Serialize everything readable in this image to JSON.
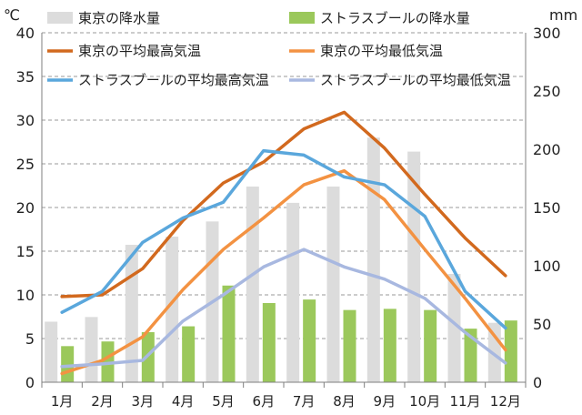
{
  "chart_data": {
    "type": "bar+line",
    "categories": [
      "1月",
      "2月",
      "3月",
      "4月",
      "5月",
      "6月",
      "7月",
      "8月",
      "9月",
      "10月",
      "11月",
      "12月"
    ],
    "left_axis": {
      "unit": "℃",
      "ylim": [
        0,
        40
      ],
      "ticks": [
        0,
        5,
        10,
        15,
        20,
        25,
        30,
        35,
        40
      ]
    },
    "right_axis": {
      "unit": "mm",
      "ylim": [
        0,
        300
      ],
      "ticks": [
        0,
        50,
        100,
        150,
        200,
        250,
        300
      ]
    },
    "grid": true,
    "legend_placement": "top",
    "bar_series": [
      {
        "name": "東京の降水量",
        "color": "#dcdcdc",
        "axis": "right",
        "values": [
          52,
          56,
          118,
          125,
          138,
          168,
          154,
          168,
          210,
          198,
          93,
          51
        ]
      },
      {
        "name": "ストラスブールの降水量",
        "color": "#9bc85b",
        "axis": "right",
        "values": [
          31,
          35,
          43,
          48,
          83,
          68,
          71,
          62,
          63,
          62,
          46,
          53
        ]
      }
    ],
    "line_series": [
      {
        "name": "東京の平均最高気温",
        "color": "#d2691e",
        "axis": "left",
        "values": [
          9.8,
          10.0,
          13.0,
          18.5,
          22.8,
          25.2,
          29.0,
          30.9,
          26.8,
          21.5,
          16.5,
          12.2
        ]
      },
      {
        "name": "東京の平均最低気温",
        "color": "#f39242",
        "axis": "left",
        "values": [
          1.0,
          2.5,
          5.2,
          10.6,
          15.2,
          18.8,
          22.6,
          24.2,
          20.9,
          15.2,
          9.6,
          3.7
        ]
      },
      {
        "name": "ストラスブールの平均最高気温",
        "color": "#5aa7dc",
        "axis": "left",
        "values": [
          8.0,
          10.4,
          16.0,
          18.8,
          20.6,
          26.5,
          26.0,
          23.5,
          22.6,
          19.0,
          10.4,
          6.2
        ]
      },
      {
        "name": "ストラスブールの平均最低気温",
        "color": "#a8b8e0",
        "axis": "left",
        "values": [
          1.8,
          2.1,
          2.5,
          7.0,
          10.0,
          13.2,
          15.2,
          13.2,
          11.8,
          9.6,
          5.7,
          2.2
        ]
      }
    ]
  }
}
